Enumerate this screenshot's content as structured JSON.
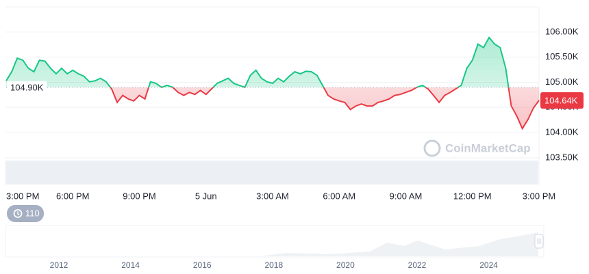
{
  "chart_data": {
    "type": "baseline-line",
    "x": [
      0,
      0.25,
      0.5,
      0.75,
      1,
      1.25,
      1.5,
      1.75,
      2,
      2.25,
      2.5,
      2.75,
      3,
      3.25,
      3.5,
      3.75,
      4,
      4.25,
      4.5,
      4.75,
      5,
      5.25,
      5.5,
      5.75,
      6,
      6.25,
      6.5,
      6.75,
      7,
      7.25,
      7.5,
      7.75,
      8,
      8.25,
      8.5,
      8.75,
      9,
      9.25,
      9.5,
      9.75,
      10,
      10.25,
      10.5,
      10.75,
      11,
      11.25,
      11.5,
      11.75,
      12,
      12.25,
      12.5,
      12.75,
      13,
      13.25,
      13.5,
      13.75,
      14,
      14.25,
      14.5,
      14.75,
      15,
      15.25,
      15.5,
      15.75,
      16,
      16.25,
      16.5,
      16.75,
      17,
      17.25,
      17.5,
      17.75,
      18,
      18.25,
      18.5,
      18.75,
      19,
      19.25,
      19.5,
      19.75,
      20,
      20.25,
      20.5,
      20.75,
      21,
      21.25,
      21.5,
      21.75,
      22,
      22.25,
      22.5,
      22.75,
      23,
      23.25,
      23.5,
      23.75,
      24
    ],
    "values": [
      105030,
      105210,
      105480,
      105440,
      105280,
      105210,
      105440,
      105420,
      105280,
      105170,
      105280,
      105170,
      105240,
      105170,
      105120,
      105010,
      105030,
      105080,
      105010,
      104870,
      104600,
      104740,
      104670,
      104630,
      104740,
      104670,
      105010,
      104980,
      104900,
      104940,
      104900,
      104800,
      104740,
      104800,
      104760,
      104840,
      104760,
      104870,
      104980,
      105030,
      105080,
      104980,
      104940,
      104900,
      105140,
      105240,
      105080,
      105010,
      104980,
      105080,
      105010,
      105120,
      105210,
      105170,
      105220,
      105210,
      105140,
      104940,
      104740,
      104670,
      104630,
      104600,
      104460,
      104530,
      104570,
      104530,
      104530,
      104600,
      104630,
      104670,
      104740,
      104760,
      104800,
      104840,
      104900,
      104940,
      104870,
      104740,
      104600,
      104740,
      104800,
      104870,
      104940,
      105280,
      105440,
      105760,
      105690,
      105890,
      105760,
      105690,
      105280,
      104530,
      104330,
      104080,
      104260,
      104490,
      104640
    ],
    "up_color": "#16c784",
    "down_color": "#ea3943",
    "reference_line": {
      "value": 104900,
      "label": "104.90K"
    },
    "last_value_label": {
      "value": 104640,
      "label": "104.64K"
    },
    "xlim": [
      0,
      24
    ],
    "xticks": [
      {
        "value": 0,
        "label": "3:00 PM"
      },
      {
        "value": 3,
        "label": "6:00 PM"
      },
      {
        "value": 6,
        "label": "9:00 PM"
      },
      {
        "value": 9,
        "label": "5 Jun"
      },
      {
        "value": 12,
        "label": "3:00 AM"
      },
      {
        "value": 15,
        "label": "6:00 AM"
      },
      {
        "value": 18,
        "label": "9:00 AM"
      },
      {
        "value": 21,
        "label": "12:00 PM"
      },
      {
        "value": 24,
        "label": "3:00 PM"
      }
    ],
    "ylim": [
      102970,
      106500
    ],
    "yticks": [
      {
        "value": 103500,
        "label": "103.50K"
      },
      {
        "value": 104000,
        "label": "104.00K"
      },
      {
        "value": 104500,
        "label": "104.50K"
      },
      {
        "value": 105000,
        "label": "105.00K"
      },
      {
        "value": 105500,
        "label": "105.50K"
      },
      {
        "value": 106000,
        "label": "106.00K"
      }
    ],
    "grid": true
  },
  "watermark": "CoinMarketCap",
  "history_badge": "110",
  "navigator": {
    "years": [
      "2012",
      "2014",
      "2016",
      "2018",
      "2020",
      "2022",
      "2024"
    ]
  }
}
